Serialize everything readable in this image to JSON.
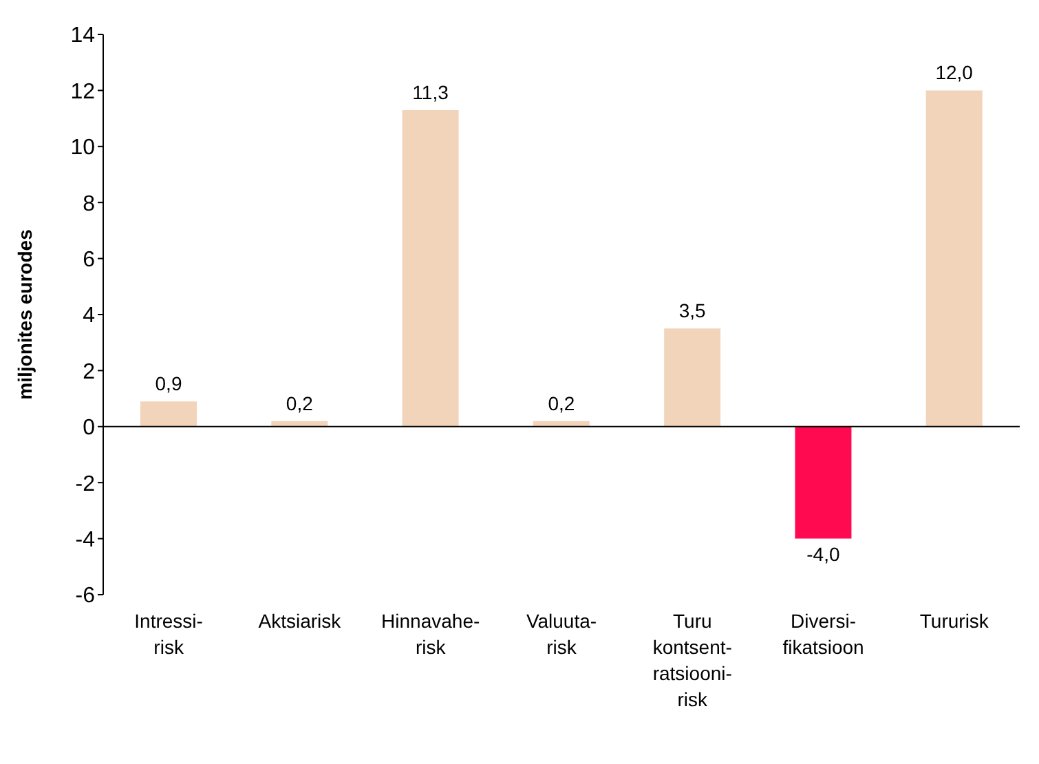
{
  "chart_data": {
    "type": "bar",
    "ylabel": "miljonites eurodes",
    "categories": [
      "Intressi-\nrisk",
      "Aktsiarisk",
      "Hinnavahe-\nrisk",
      "Valuuta-\nrisk",
      "Turu\nkontsent-\nratsiooni-\nrisk",
      "Diversi-\nfikatsioon",
      "Tururisk"
    ],
    "values": [
      0.9,
      0.2,
      11.3,
      0.2,
      3.5,
      -4.0,
      12.0
    ],
    "value_labels": [
      "0,9",
      "0,2",
      "11,3",
      "0,2",
      "3,5",
      "-4,0",
      "12,0"
    ],
    "colors": [
      "#f2d4bb",
      "#f2d4bb",
      "#f2d4bb",
      "#f2d4bb",
      "#f2d4bb",
      "#ff0a50",
      "#f2d4bb"
    ],
    "ylim": [
      -6,
      14
    ],
    "yticks": [
      -6,
      -4,
      -2,
      0,
      2,
      4,
      6,
      8,
      10,
      12,
      14
    ],
    "ref_lines": [
      {
        "axis": "y",
        "value": 0,
        "color": "#000000"
      }
    ],
    "grid": false
  }
}
